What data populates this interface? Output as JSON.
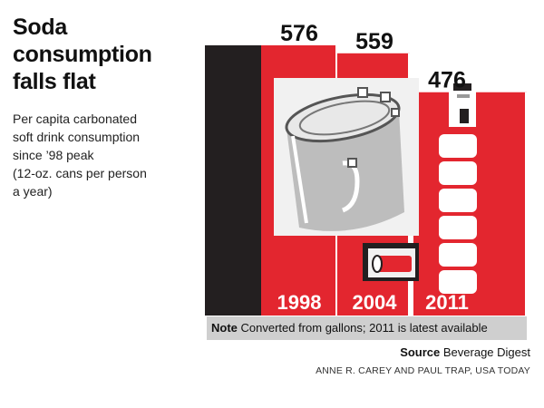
{
  "header": {
    "title_lines": [
      "Soda",
      "consumption",
      "falls flat"
    ],
    "subtitle_lines": [
      "Per capita carbonated",
      "soft drink consumption",
      "since ’98 peak",
      "(12-oz. cans per person",
      "a year)"
    ]
  },
  "chart_data": {
    "type": "bar",
    "categories": [
      "1998",
      "2004",
      "2011"
    ],
    "values": [
      576,
      559,
      476
    ],
    "value_labels": [
      "576",
      "559",
      "476"
    ],
    "title": "Soda consumption falls flat",
    "ylabel": "",
    "xlabel": "",
    "ylim": [
      0,
      576
    ],
    "grid": false,
    "legend": "none",
    "colors": {
      "bar": "#e3262f",
      "dark": "#231f20",
      "illustration_bg": "#f1f1f1",
      "can": "#bdbdbd",
      "note_bg": "#cfcfcf"
    }
  },
  "footer": {
    "note_label": "Note",
    "note_text": " Converted from gallons; 2011 is latest available",
    "source_label": "Source",
    "source_text": " Beverage Digest",
    "credit": "ANNE R. CAREY AND PAUL TRAP, USA TODAY"
  }
}
